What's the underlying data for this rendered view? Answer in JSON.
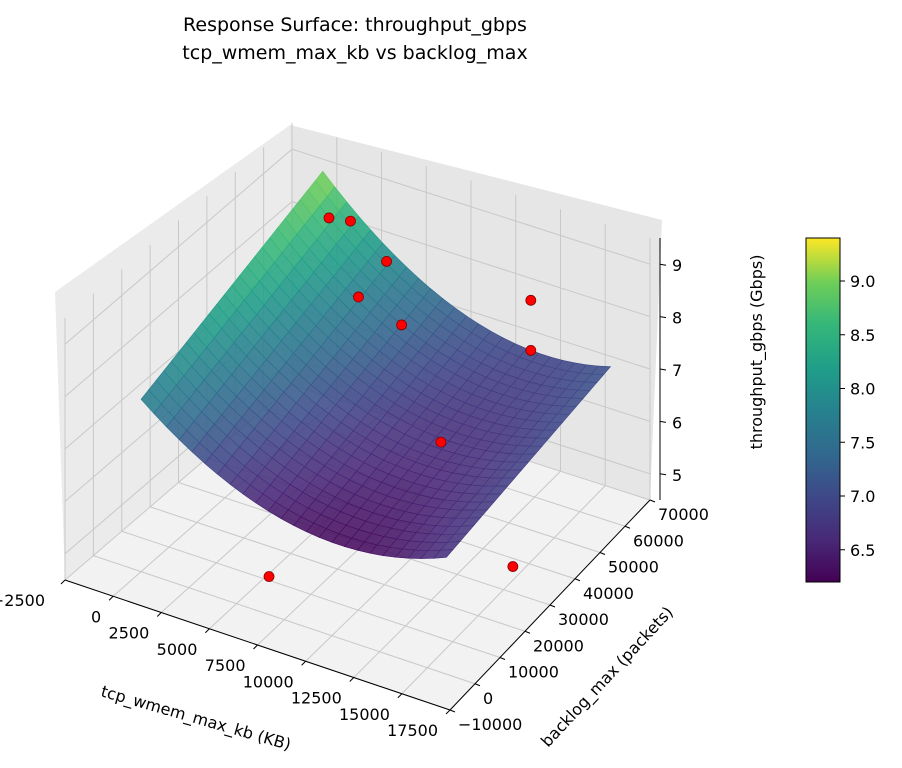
{
  "chart_data": {
    "type": "surface",
    "title": "Response Surface: throughput_gbps",
    "subtitle": "tcp_wmem_max_kb vs backlog_max",
    "xlabel": "tcp_wmem_max_kb (KB)",
    "ylabel": "backlog_max (packets)",
    "zlabel": "throughput_gbps (Gbps)",
    "xlim": [
      -2500,
      17500
    ],
    "ylim": [
      -10000,
      70000
    ],
    "zlim": [
      4.5,
      9.5
    ],
    "x_ticks": [
      "−2500",
      "0",
      "2500",
      "5000",
      "7500",
      "10000",
      "12500",
      "15000",
      "17500"
    ],
    "y_ticks": [
      "−10000",
      "0",
      "10000",
      "20000",
      "30000",
      "40000",
      "50000",
      "60000",
      "70000"
    ],
    "z_ticks": [
      "5",
      "6",
      "7",
      "8",
      "9"
    ],
    "colorbar": {
      "colormap": "viridis",
      "range": [
        6.2,
        9.4
      ],
      "ticks": [
        "6.5",
        "7.0",
        "7.5",
        "8.0",
        "8.5",
        "9.0"
      ]
    },
    "surface": {
      "description_rows": "backlog_max from 0 to 65000, columns tcp_wmem_max_kb from 0 to 16000",
      "x": [
        0,
        16000
      ],
      "y": [
        0,
        65000
      ],
      "corner_values": {
        "x0_y0": 7.3,
        "x16000_y0": 6.6,
        "x0_y65000": 8.6,
        "x16000_y65000": 7.0
      },
      "min_value": 6.2,
      "max_value": 9.4
    },
    "points": [
      {
        "x": 500,
        "y": 64000,
        "z": 8.3
      },
      {
        "x": 2000,
        "y": 62000,
        "z": 8.5
      },
      {
        "x": 5500,
        "y": 52000,
        "z": 8.6
      },
      {
        "x": 5000,
        "y": 45000,
        "z": 8.2
      },
      {
        "x": 7500,
        "y": 44000,
        "z": 8.0
      },
      {
        "x": 10500,
        "y": 38000,
        "z": 6.4
      },
      {
        "x": 12000,
        "y": 62000,
        "z": 8.1
      },
      {
        "x": 13000,
        "y": 55000,
        "z": 7.6
      },
      {
        "x": 6000,
        "y": 5000,
        "z": 4.9
      },
      {
        "x": 15500,
        "y": 30000,
        "z": 5.0
      }
    ],
    "point_color": "#ff0000",
    "grid": true
  }
}
